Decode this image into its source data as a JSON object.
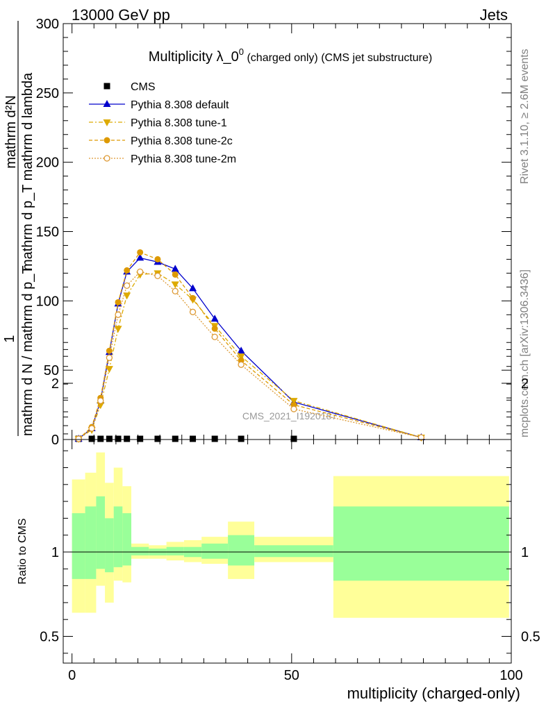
{
  "header": {
    "left": "13000 GeV pp",
    "right": "Jets"
  },
  "side_labels": {
    "rivet": "Rivet 3.1.10, ≥ 2.6M events",
    "mcplots": "mcplots.cern.ch [arXiv:1306.3436]"
  },
  "watermark": "CMS_2021_I1920187",
  "chart_data": [
    {
      "type": "line",
      "title_main": "Multiplicity λ_0",
      "title_sup": "0",
      "title_sub": " (charged only) (CMS jet substructure)",
      "ylabel_line1": "mathrm d²N",
      "ylabel_line2": "mathrm d p_T mathrm d lambda",
      "ylabel_prefix_num": "1",
      "ylabel_prefix_den": "mathrm d N / mathrm d p_T",
      "ylim": [
        0,
        300
      ],
      "yticks": [
        0,
        50,
        100,
        150,
        200,
        250,
        300
      ],
      "xlim": [
        -2,
        100
      ],
      "legend_position": "top-left",
      "series": [
        {
          "name": "CMS",
          "color": "#000000",
          "marker": "square",
          "x": [
            1.5,
            4.5,
            6.5,
            8.5,
            10.5,
            12.5,
            15.5,
            19.5,
            23.5,
            27.5,
            32.5,
            38.5,
            50.5
          ],
          "y": [
            0.5,
            0.5,
            0.5,
            0.5,
            0.5,
            0.5,
            0.5,
            0.5,
            0.5,
            0.5,
            0.5,
            0.5,
            0.5
          ]
        },
        {
          "name": "Pythia 8.308 default",
          "color": "#0000cc",
          "marker": "triangle-up",
          "dash": "",
          "x": [
            1.5,
            4.5,
            6.5,
            8.5,
            10.5,
            12.5,
            15.5,
            19.5,
            23.5,
            27.5,
            32.5,
            38.5,
            50.5,
            79.5
          ],
          "y": [
            0.5,
            8,
            28,
            63,
            98,
            121,
            131,
            128,
            123,
            109,
            87,
            64,
            27,
            1.5
          ]
        },
        {
          "name": "Pythia 8.308 tune-1",
          "color": "#ddaa00",
          "marker": "triangle-down",
          "dash": "6,3,2,3",
          "x": [
            1.5,
            4.5,
            6.5,
            8.5,
            10.5,
            12.5,
            15.5,
            19.5,
            23.5,
            27.5,
            32.5,
            38.5,
            50.5,
            79.5
          ],
          "y": [
            0.5,
            7,
            25,
            51,
            80,
            104,
            119,
            120,
            112,
            101,
            82,
            60,
            28,
            1.5
          ]
        },
        {
          "name": "Pythia 8.308 tune-2c",
          "color": "#dd9900",
          "marker": "circle",
          "dash": "5,3",
          "x": [
            1.5,
            4.5,
            6.5,
            8.5,
            10.5,
            12.5,
            15.5,
            19.5,
            23.5,
            27.5,
            32.5,
            38.5,
            50.5,
            79.5
          ],
          "y": [
            0.5,
            9,
            30,
            64,
            99,
            122,
            135,
            130,
            119,
            102,
            80,
            57,
            25,
            1.5
          ]
        },
        {
          "name": "Pythia 8.308 tune-2m",
          "color": "#dd9933",
          "marker": "circle-open",
          "dash": "2,2",
          "x": [
            1.5,
            4.5,
            6.5,
            8.5,
            10.5,
            12.5,
            15.5,
            19.5,
            23.5,
            27.5,
            32.5,
            38.5,
            50.5,
            79.5
          ],
          "y": [
            0.5,
            8,
            28,
            59,
            90,
            111,
            121,
            118,
            107,
            92,
            74,
            54,
            22,
            1.5
          ]
        }
      ]
    },
    {
      "type": "area",
      "ylabel": "Ratio to CMS",
      "xlabel": "multiplicity (charged-only)",
      "xlim": [
        -2,
        100
      ],
      "xticks": [
        0,
        50,
        100
      ],
      "ylim": [
        0.34,
        2.25
      ],
      "yticks": [
        0.5,
        1,
        2
      ],
      "colors": {
        "outer": "#ffff99",
        "inner": "#99ff99"
      },
      "bands": [
        {
          "x0": 0,
          "x1": 3,
          "outer": [
            0.64,
            1.43
          ],
          "inner": [
            0.84,
            1.23
          ]
        },
        {
          "x0": 3,
          "x1": 5.5,
          "outer": [
            0.64,
            1.47
          ],
          "inner": [
            0.84,
            1.27
          ]
        },
        {
          "x0": 5.5,
          "x1": 7.5,
          "outer": [
            0.8,
            1.59
          ],
          "inner": [
            0.9,
            1.33
          ]
        },
        {
          "x0": 7.5,
          "x1": 9.5,
          "outer": [
            0.7,
            1.41
          ],
          "inner": [
            0.88,
            1.2
          ]
        },
        {
          "x0": 9.5,
          "x1": 11.5,
          "outer": [
            0.83,
            1.5
          ],
          "inner": [
            0.91,
            1.27
          ]
        },
        {
          "x0": 11.5,
          "x1": 13.5,
          "outer": [
            0.82,
            1.39
          ],
          "inner": [
            0.92,
            1.23
          ]
        },
        {
          "x0": 13.5,
          "x1": 17.5,
          "outer": [
            0.96,
            1.05
          ],
          "inner": [
            0.98,
            1.03
          ]
        },
        {
          "x0": 17.5,
          "x1": 21.5,
          "outer": [
            0.96,
            1.04
          ],
          "inner": [
            0.98,
            1.02
          ]
        },
        {
          "x0": 21.5,
          "x1": 25.5,
          "outer": [
            0.95,
            1.06
          ],
          "inner": [
            0.98,
            1.03
          ]
        },
        {
          "x0": 25.5,
          "x1": 29.5,
          "outer": [
            0.94,
            1.07
          ],
          "inner": [
            0.97,
            1.03
          ]
        },
        {
          "x0": 29.5,
          "x1": 35.5,
          "outer": [
            0.93,
            1.09
          ],
          "inner": [
            0.96,
            1.05
          ]
        },
        {
          "x0": 35.5,
          "x1": 41.5,
          "outer": [
            0.84,
            1.18
          ],
          "inner": [
            0.92,
            1.1
          ]
        },
        {
          "x0": 41.5,
          "x1": 59.5,
          "outer": [
            0.94,
            1.09
          ],
          "inner": [
            0.97,
            1.04
          ]
        },
        {
          "x0": 59.5,
          "x1": 99.5,
          "outer": [
            0.61,
            1.45
          ],
          "inner": [
            0.83,
            1.27
          ]
        }
      ]
    }
  ]
}
